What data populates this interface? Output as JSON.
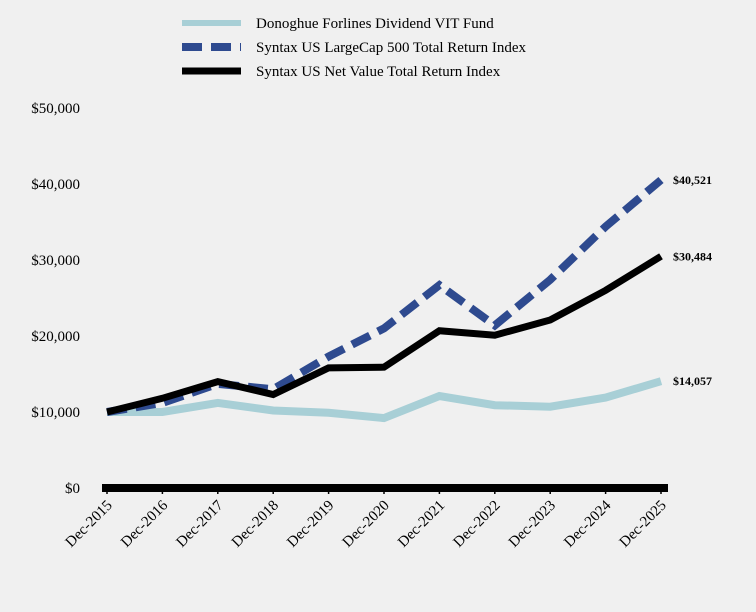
{
  "chart_data": {
    "type": "line",
    "categories": [
      "Dec-2015",
      "Dec-2016",
      "Dec-2017",
      "Dec-2018",
      "Dec-2019",
      "Dec-2020",
      "Dec-2021",
      "Dec-2022",
      "Dec-2023",
      "Dec-2024",
      "Dec-2025"
    ],
    "series": [
      {
        "name": "Donoghue Forlines Dividend VIT Fund",
        "color": "#a8cfd6",
        "style": "solid",
        "values": [
          10000,
          10000,
          11200,
          10200,
          9900,
          9200,
          12100,
          10900,
          10700,
          11900,
          14057
        ],
        "end_label": "$14,057"
      },
      {
        "name": "Syntax US LargeCap 500 Total Return Index",
        "color": "#2e4a8f",
        "style": "dashed",
        "values": [
          10000,
          11200,
          13700,
          13000,
          17300,
          21000,
          26700,
          21400,
          27400,
          34400,
          40521
        ],
        "end_label": "$40,521"
      },
      {
        "name": "Syntax US Net Value Total Return Index",
        "color": "#000000",
        "style": "solid",
        "values": [
          10000,
          11800,
          14000,
          12300,
          15800,
          15900,
          20700,
          20100,
          22100,
          26000,
          30484
        ],
        "end_label": "$30,484"
      }
    ],
    "y_ticks": [
      0,
      10000,
      20000,
      30000,
      40000,
      50000
    ],
    "y_tick_labels": [
      "$0",
      "$10,000",
      "$20,000",
      "$30,000",
      "$40,000",
      "$50,000"
    ],
    "ylim": [
      0,
      50000
    ],
    "grid": false,
    "legend_position": "top-center"
  }
}
